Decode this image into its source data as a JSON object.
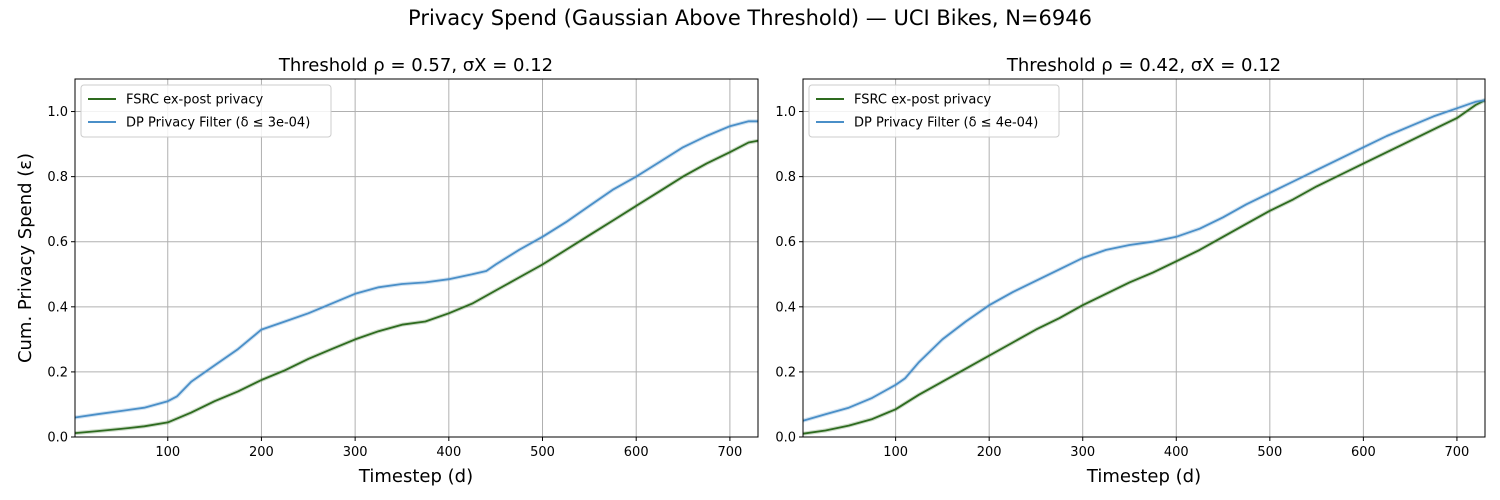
{
  "figure": {
    "title": "Privacy Spend (Gaussian Above Threshold) — UCI Bikes, N=6946"
  },
  "colors": {
    "fsrc": "#2e6b1f",
    "dp": "#4a8fc8",
    "grid": "#b0b0b0"
  },
  "chart_data": [
    {
      "type": "line",
      "title": "Threshold ρ = 0.57, σX = 0.12",
      "xlabel": "Timestep (d)",
      "ylabel": "Cum. Privacy Spend (ε)",
      "xlim": [
        1,
        730
      ],
      "ylim": [
        0,
        1.1
      ],
      "xticks": [
        100,
        200,
        300,
        400,
        500,
        600,
        700
      ],
      "yticks": [
        0.0,
        0.2,
        0.4,
        0.6,
        0.8,
        1.0
      ],
      "grid": true,
      "legend_position": "top-left",
      "series": [
        {
          "name": "FSRC ex-post privacy",
          "color": "#2e6b1f",
          "x": [
            1,
            25,
            50,
            75,
            100,
            125,
            150,
            175,
            200,
            225,
            250,
            275,
            300,
            325,
            350,
            375,
            400,
            425,
            450,
            475,
            500,
            525,
            550,
            575,
            600,
            625,
            650,
            675,
            700,
            720,
            730
          ],
          "y": [
            0.012,
            0.018,
            0.025,
            0.033,
            0.045,
            0.075,
            0.11,
            0.14,
            0.175,
            0.205,
            0.24,
            0.27,
            0.3,
            0.325,
            0.345,
            0.355,
            0.38,
            0.41,
            0.45,
            0.49,
            0.53,
            0.575,
            0.62,
            0.665,
            0.71,
            0.755,
            0.8,
            0.84,
            0.875,
            0.905,
            0.91
          ]
        },
        {
          "name": "DP Privacy Filter (δ ≤ 3e-04)",
          "color": "#4a8fc8",
          "x": [
            1,
            25,
            50,
            75,
            100,
            110,
            125,
            150,
            175,
            200,
            225,
            250,
            275,
            300,
            325,
            350,
            375,
            400,
            425,
            440,
            450,
            475,
            500,
            525,
            550,
            575,
            600,
            625,
            650,
            675,
            700,
            720,
            730
          ],
          "y": [
            0.06,
            0.07,
            0.08,
            0.09,
            0.11,
            0.125,
            0.17,
            0.22,
            0.27,
            0.33,
            0.355,
            0.38,
            0.41,
            0.44,
            0.46,
            0.47,
            0.475,
            0.485,
            0.5,
            0.51,
            0.53,
            0.575,
            0.615,
            0.66,
            0.71,
            0.76,
            0.8,
            0.845,
            0.89,
            0.925,
            0.955,
            0.97,
            0.97
          ]
        }
      ]
    },
    {
      "type": "line",
      "title": "Threshold ρ = 0.42, σX = 0.12",
      "xlabel": "Timestep (d)",
      "ylabel": "",
      "xlim": [
        1,
        730
      ],
      "ylim": [
        0,
        1.1
      ],
      "xticks": [
        100,
        200,
        300,
        400,
        500,
        600,
        700
      ],
      "yticks": [
        0.0,
        0.2,
        0.4,
        0.6,
        0.8,
        1.0
      ],
      "grid": true,
      "legend_position": "top-left",
      "series": [
        {
          "name": "FSRC ex-post privacy",
          "color": "#2e6b1f",
          "x": [
            1,
            25,
            50,
            75,
            100,
            125,
            150,
            175,
            200,
            225,
            250,
            275,
            300,
            325,
            350,
            375,
            400,
            425,
            450,
            475,
            500,
            525,
            550,
            575,
            600,
            625,
            650,
            675,
            700,
            720,
            730
          ],
          "y": [
            0.01,
            0.02,
            0.035,
            0.055,
            0.085,
            0.13,
            0.17,
            0.21,
            0.25,
            0.29,
            0.33,
            0.365,
            0.405,
            0.44,
            0.475,
            0.505,
            0.54,
            0.575,
            0.615,
            0.655,
            0.695,
            0.73,
            0.77,
            0.805,
            0.84,
            0.875,
            0.91,
            0.945,
            0.98,
            1.02,
            1.035
          ]
        },
        {
          "name": "DP Privacy Filter (δ ≤ 4e-04)",
          "color": "#4a8fc8",
          "x": [
            1,
            25,
            50,
            75,
            100,
            110,
            125,
            150,
            175,
            200,
            225,
            250,
            275,
            300,
            325,
            350,
            375,
            400,
            425,
            450,
            475,
            500,
            525,
            550,
            575,
            600,
            625,
            650,
            675,
            700,
            720,
            730
          ],
          "y": [
            0.05,
            0.07,
            0.09,
            0.12,
            0.16,
            0.18,
            0.23,
            0.3,
            0.355,
            0.405,
            0.445,
            0.48,
            0.515,
            0.55,
            0.575,
            0.59,
            0.6,
            0.615,
            0.64,
            0.675,
            0.715,
            0.75,
            0.785,
            0.82,
            0.855,
            0.89,
            0.925,
            0.955,
            0.985,
            1.01,
            1.03,
            1.035
          ]
        }
      ]
    }
  ]
}
